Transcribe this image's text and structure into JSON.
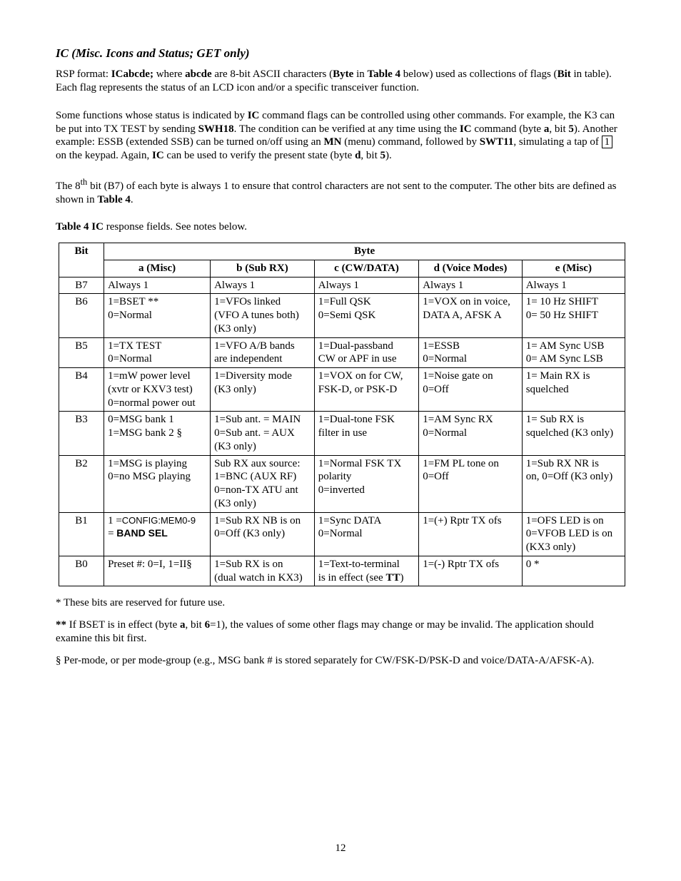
{
  "section_title": "IC (Misc. Icons and Status; GET only)",
  "para1": {
    "pre": "RSP format:  ",
    "b1": "ICabcde;",
    "mid1": "  where ",
    "b2": "abcde",
    "mid2": " are 8-bit ASCII characters (",
    "b3": "Byte",
    "mid3": " in ",
    "b4": "Table 4",
    "mid4": " below) used as collections of flags (",
    "b5": "Bit",
    "end": " in table). Each flag represents the status of an LCD icon and/or a specific transceiver function."
  },
  "para2": {
    "t1": "Some functions whose status is indicated by ",
    "b1": "IC",
    "t2": " command flags can be controlled using other commands. For example, the K3 can be put into TX TEST by sending ",
    "b2": "SWH18",
    "t3": ". The condition can be verified at any time using the ",
    "b3": "IC",
    "t4": " command (byte ",
    "b4": "a",
    "t5": ", bit ",
    "b5": "5",
    "t6": "). Another example: ESSB (extended SSB) can be turned on/off using an ",
    "b6": "MN",
    "t7": " (menu) command, followed by ",
    "b7": "SWT11",
    "t8": ", simulating a tap of ",
    "key": "1",
    "t9": " on the keypad. Again, ",
    "b8": "IC",
    "t10": " can be used to verify the present state (byte ",
    "b9": "d",
    "t11": ", bit ",
    "b10": "5",
    "t12": ")."
  },
  "para3": {
    "t1": "The 8",
    "sup": "th",
    "t2": " bit (B7) of each byte is always 1 to ensure that control characters are not sent to the computer. The other bits are defined as shown in ",
    "b1": "Table 4",
    "t3": "."
  },
  "caption": {
    "b": "Table 4  IC",
    "rest": " response fields. See notes below."
  },
  "table": {
    "byte_header": "Byte",
    "col_headers": {
      "bit": "Bit",
      "a_b": "a",
      "a_t": " (Misc)",
      "b_b": "b",
      "b_t": " (Sub RX)",
      "c_b": "c",
      "c_t": " (CW/DATA)",
      "d_b": "d",
      "d_t": " (Voice Modes)",
      "e_b": "e",
      "e_t": " (Misc)"
    },
    "rows": {
      "B7": {
        "bit": "B7",
        "a": "Always 1",
        "b": "Always 1",
        "c": "Always 1",
        "d": "Always 1",
        "e": "Always 1"
      },
      "B6": {
        "bit": "B6",
        "a": "1=BSET **\n0=Normal",
        "b": "1=VFOs linked\n(VFO A tunes both)\n(K3 only)",
        "c": "1=Full QSK\n0=Semi QSK",
        "d": "1=VOX on in voice,\nDATA A, AFSK A",
        "e": "1= 10 Hz SHIFT\n0= 50 Hz SHIFT"
      },
      "B5": {
        "bit": "B5",
        "a": "1=TX TEST\n0=Normal",
        "b": "1=VFO A/B bands\nare independent",
        "c": "1=Dual-passband\nCW or APF in use",
        "d": "1=ESSB\n0=Normal",
        "e": "1= AM Sync USB\n0= AM Sync LSB"
      },
      "B4": {
        "bit": "B4",
        "a": "1=mW power level\n(xvtr or KXV3 test)\n0=normal power out",
        "b": "1=Diversity mode\n(K3 only)",
        "c": "1=VOX on for CW,\nFSK-D, or PSK-D",
        "d": "1=Noise gate on\n0=Off",
        "e": "1= Main RX is\nsquelched"
      },
      "B3": {
        "bit": "B3",
        "a": "0=MSG bank 1\n1=MSG bank 2    §",
        "b": "1=Sub ant. = MAIN\n0=Sub ant. = AUX\n(K3 only)",
        "c": "1=Dual-tone FSK\nfilter in use",
        "d": "1=AM Sync RX\n0=Normal",
        "e": "1= Sub RX is\nsquelched (K3 only)"
      },
      "B2": {
        "bit": "B2",
        "a": "1=MSG is playing\n0=no MSG playing",
        "b": "Sub RX aux source:\n1=BNC (AUX RF)\n0=non-TX ATU ant\n(K3 only)",
        "c": "1=Normal FSK TX\npolarity\n0=inverted",
        "d": "1=FM PL tone on\n0=Off",
        "e": "1=Sub RX NR is\non, 0=Off (K3 only)"
      },
      "B1": {
        "bit": "B1",
        "a_pre": "1 =",
        "a_mono": "CONFIG:MEM0-9",
        "a_mid": "\n= ",
        "a_bold": "BAND SEL",
        "b": "1=Sub RX NB is on\n0=Off (K3 only)",
        "c": "1=Sync DATA\n0=Normal",
        "d": "1=(+) Rptr TX ofs",
        "e": "1=OFS LED is on\n0=VFOB LED is on\n(KX3 only)"
      },
      "B0": {
        "bit": "B0",
        "a": "Preset #: 0=I, 1=II§",
        "b": "1=Sub RX is on\n(dual watch in KX3)",
        "c_pre": "1=Text-to-terminal\nis in effect (see ",
        "c_bold": "TT",
        "c_post": ")",
        "d": "1=(-) Rptr TX ofs",
        "e": "0 *"
      }
    }
  },
  "footnotes": {
    "f1": "* These bits are reserved for future use.",
    "f2_b": "**",
    "f2_t1": " If BSET is in effect (byte ",
    "f2_b2": "a",
    "f2_t2": ", bit ",
    "f2_b3": "6",
    "f2_t3": "=1), the values of some other flags may change or may be invalid. The application should examine this bit first.",
    "f3": "§ Per-mode, or per mode-group (e.g., MSG bank # is stored separately for CW/FSK-D/PSK-D and voice/DATA-A/AFSK-A)."
  },
  "page_number": "12"
}
